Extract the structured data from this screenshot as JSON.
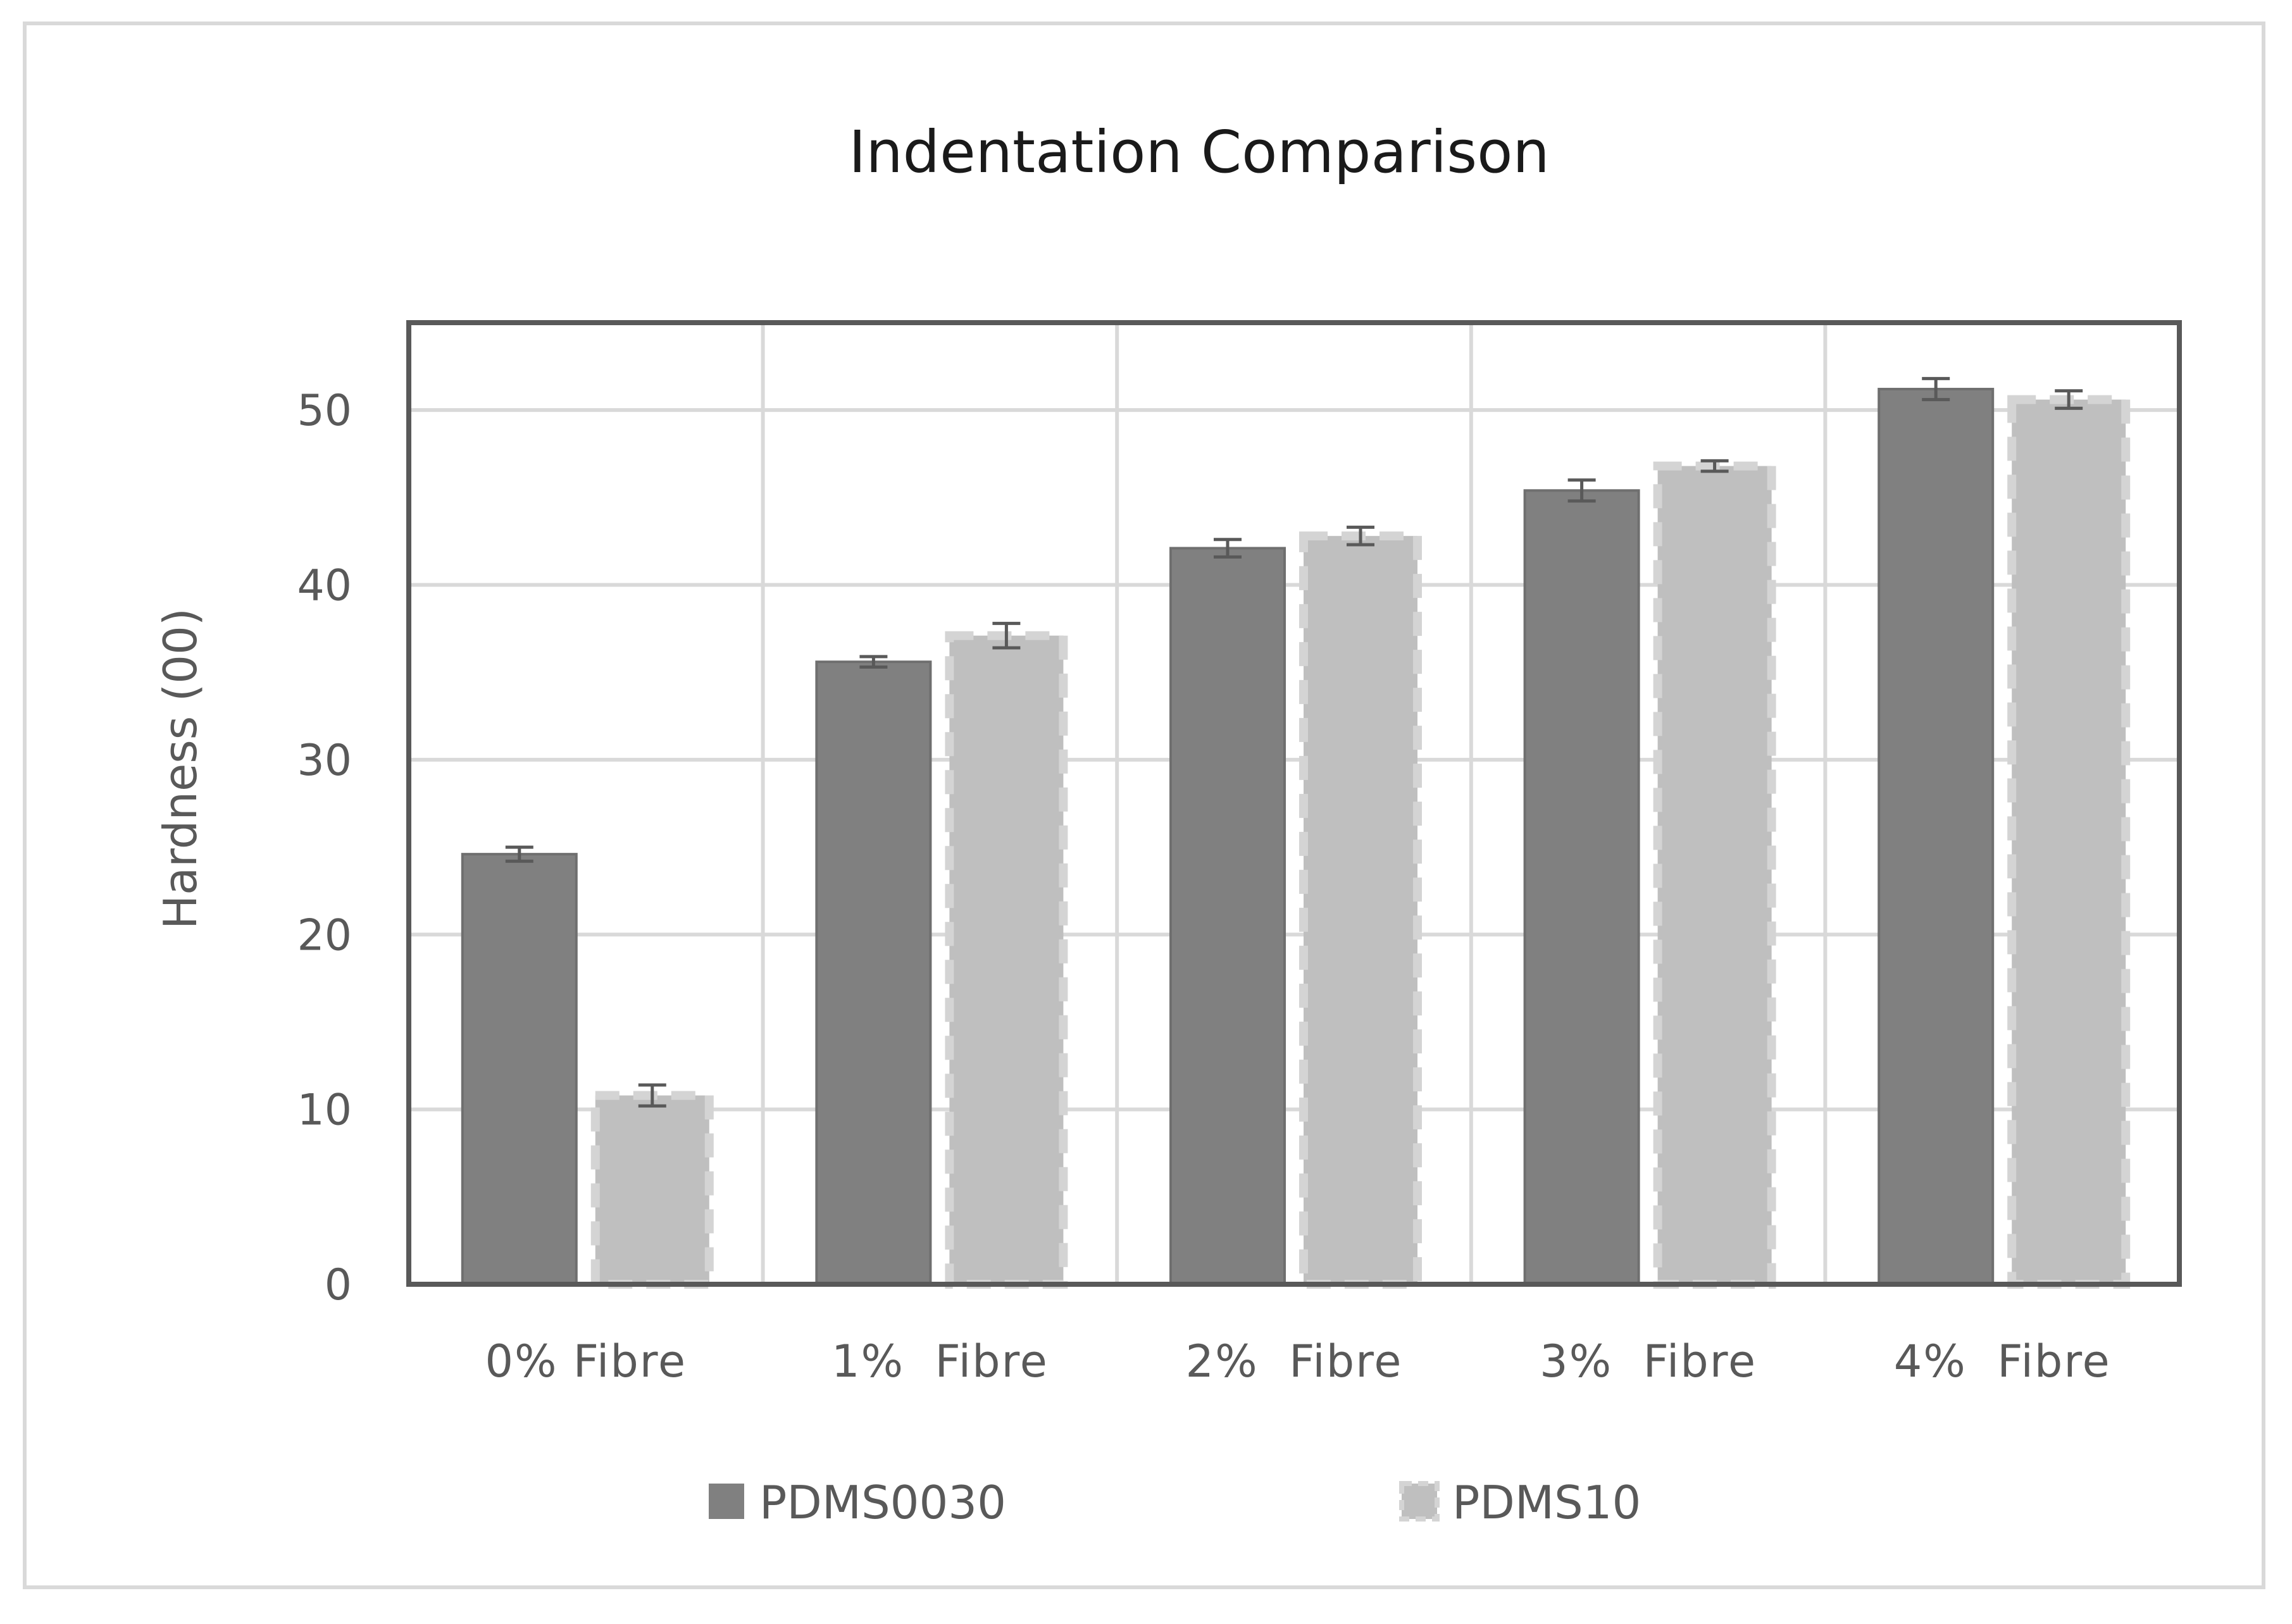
{
  "chart_data": {
    "type": "bar",
    "title": "Indentation Comparison",
    "xlabel": "",
    "ylabel": "Hardness (00)",
    "ylim": [
      0,
      55
    ],
    "yticks": [
      0,
      10,
      20,
      30,
      40,
      50
    ],
    "grid": true,
    "legend_position": "bottom",
    "categories": [
      "0% Fibre",
      "1%  Fibre",
      "2%  Fibre",
      "3%  Fibre",
      "4%  Fibre"
    ],
    "series": [
      {
        "name": "PDMS0030",
        "color": "#808080",
        "values": [
          24.6,
          35.6,
          42.1,
          45.4,
          51.2
        ],
        "errors": [
          0.4,
          0.3,
          0.5,
          0.6,
          0.6
        ]
      },
      {
        "name": "PDMS10",
        "color": "#bfbfbf",
        "values": [
          10.8,
          37.1,
          42.8,
          46.8,
          50.6
        ],
        "errors": [
          0.6,
          0.7,
          0.5,
          0.3,
          0.5
        ]
      }
    ]
  }
}
